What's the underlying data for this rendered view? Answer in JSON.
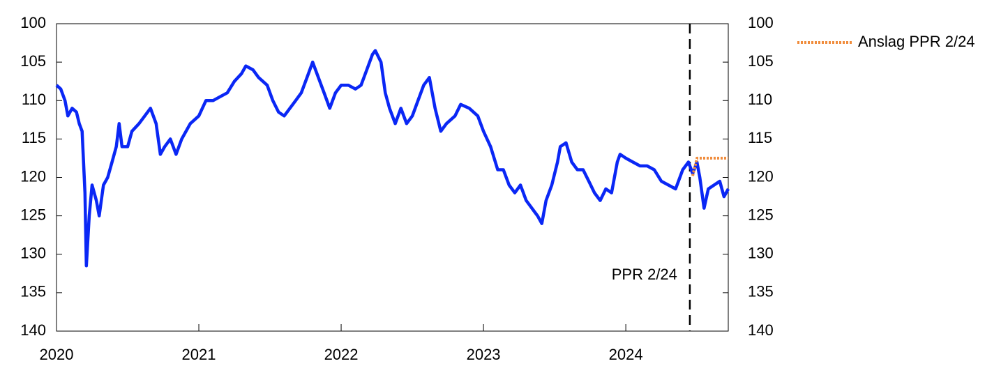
{
  "chart_data": {
    "type": "line",
    "xlim": [
      2020,
      2024.72
    ],
    "xticks": [
      2020,
      2021,
      2022,
      2023,
      2024
    ],
    "ylim": [
      100,
      140
    ],
    "yticks": [
      100,
      105,
      110,
      115,
      120,
      125,
      130,
      135,
      140
    ],
    "y_inverted": true,
    "y2lim": [
      100,
      140
    ],
    "y2ticks": [
      100,
      105,
      110,
      115,
      120,
      125,
      130,
      135,
      140
    ],
    "vline": {
      "x": 2024.45,
      "label": "PPR 2/24"
    },
    "legend": "top-right-outside",
    "series": [
      {
        "color": "#0a27f5",
        "style": "solid",
        "x": [
          2020.0,
          2020.03,
          2020.06,
          2020.08,
          2020.11,
          2020.14,
          2020.16,
          2020.18,
          2020.2,
          2020.21,
          2020.23,
          2020.25,
          2020.28,
          2020.3,
          2020.33,
          2020.36,
          2020.39,
          2020.42,
          2020.44,
          2020.46,
          2020.5,
          2020.53,
          2020.58,
          2020.62,
          2020.66,
          2020.7,
          2020.73,
          2020.76,
          2020.8,
          2020.84,
          2020.88,
          2020.94,
          2021.0,
          2021.05,
          2021.1,
          2021.15,
          2021.2,
          2021.25,
          2021.3,
          2021.33,
          2021.38,
          2021.42,
          2021.48,
          2021.52,
          2021.56,
          2021.6,
          2021.64,
          2021.68,
          2021.72,
          2021.76,
          2021.8,
          2021.84,
          2021.88,
          2021.92,
          2021.96,
          2022.0,
          2022.05,
          2022.1,
          2022.14,
          2022.18,
          2022.22,
          2022.24,
          2022.28,
          2022.31,
          2022.34,
          2022.38,
          2022.42,
          2022.46,
          2022.5,
          2022.54,
          2022.58,
          2022.62,
          2022.66,
          2022.7,
          2022.74,
          2022.8,
          2022.84,
          2022.9,
          2022.96,
          2023.0,
          2023.05,
          2023.1,
          2023.14,
          2023.18,
          2023.22,
          2023.26,
          2023.3,
          2023.34,
          2023.38,
          2023.41,
          2023.44,
          2023.48,
          2023.52,
          2023.54,
          2023.58,
          2023.62,
          2023.66,
          2023.7,
          2023.74,
          2023.78,
          2023.82,
          2023.86,
          2023.9,
          2023.94,
          2023.96,
          2024.0,
          2024.05,
          2024.1,
          2024.15,
          2024.2,
          2024.25,
          2024.3,
          2024.35,
          2024.4,
          2024.44,
          2024.47,
          2024.5,
          2024.52,
          2024.55,
          2024.58,
          2024.62,
          2024.66,
          2024.69,
          2024.72
        ],
        "values": [
          108,
          108.5,
          110,
          112,
          111,
          111.5,
          113,
          114,
          122,
          131.5,
          125,
          121,
          123,
          125,
          121,
          120,
          118,
          116,
          113,
          116,
          116,
          114,
          113,
          112,
          111,
          113,
          117,
          116,
          115,
          117,
          115,
          113,
          112,
          110,
          110,
          109.5,
          109,
          107.5,
          106.5,
          105.5,
          106,
          107,
          108,
          110,
          111.5,
          112,
          111,
          110,
          109,
          107,
          105,
          107,
          109,
          111,
          109,
          108,
          108,
          108.5,
          108,
          106,
          104,
          103.5,
          105,
          109,
          111,
          113,
          111,
          113,
          112,
          110,
          108,
          107,
          111,
          114,
          113,
          112,
          110.5,
          111,
          112,
          114,
          116,
          119,
          119,
          121,
          122,
          121,
          123,
          124,
          125,
          126,
          123,
          121,
          118,
          116,
          115.5,
          118,
          119,
          119,
          120.5,
          122,
          123,
          121.5,
          122,
          118,
          117,
          117.5,
          118,
          118.5,
          118.5,
          119,
          120.5,
          121,
          121.5,
          119,
          118,
          119.5,
          118,
          120,
          124,
          121.5,
          121,
          120.5,
          122.5,
          121.5
        ]
      },
      {
        "name": "Anslag PPR 2/24",
        "color": "#f08c3c",
        "style": "dotted",
        "x": [
          2024.47,
          2024.5,
          2024.72
        ],
        "values": [
          119.8,
          117.5,
          117.5
        ]
      }
    ]
  }
}
